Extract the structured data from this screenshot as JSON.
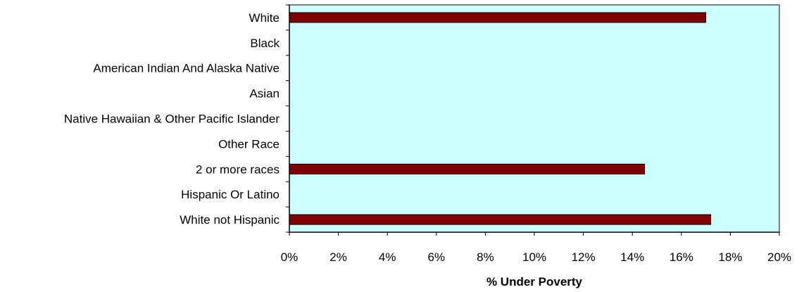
{
  "chart_data": {
    "type": "bar",
    "orientation": "horizontal",
    "categories": [
      "White",
      "Black",
      "American Indian And Alaska Native",
      "Asian",
      "Native Hawaiian & Other Pacific Islander",
      "Other Race",
      "2 or more races",
      "Hispanic Or Latino",
      "White not Hispanic"
    ],
    "values": [
      17.0,
      null,
      null,
      null,
      null,
      null,
      14.5,
      null,
      17.2
    ],
    "xlabel": "% Under Poverty",
    "xlim": [
      0,
      20
    ],
    "xticks": [
      "0%",
      "2%",
      "4%",
      "6%",
      "8%",
      "10%",
      "12%",
      "14%",
      "16%",
      "18%",
      "20%"
    ],
    "grid": false,
    "legend": "none",
    "colors": {
      "bar": "#800000",
      "plot_background": "#ccffff",
      "plot_border": "#808080"
    }
  }
}
